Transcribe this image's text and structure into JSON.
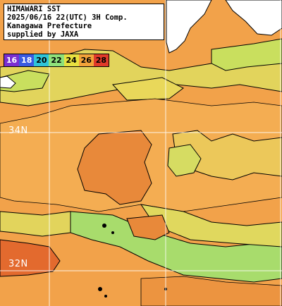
{
  "header": {
    "lines": [
      "HIMAWARI SST",
      "2025/06/16 22(UTC) 3H Comp.",
      "Kanagawa Prefecture",
      "supplied by JAXA"
    ]
  },
  "legend": {
    "items": [
      {
        "label": "16",
        "bg": "#7a2fd0",
        "fg": "#ffffff"
      },
      {
        "label": "18",
        "bg": "#3a5be0",
        "fg": "#ffffff"
      },
      {
        "label": "20",
        "bg": "#2fc4d8",
        "fg": "#000000"
      },
      {
        "label": "22",
        "bg": "#8fe07a",
        "fg": "#000000"
      },
      {
        "label": "24",
        "bg": "#e8e040",
        "fg": "#000000"
      },
      {
        "label": "26",
        "bg": "#f2a23a",
        "fg": "#000000"
      },
      {
        "label": "28",
        "bg": "#e03a2a",
        "fg": "#000000"
      }
    ]
  },
  "grid_labels": {
    "lat_34": "34N",
    "lat_32": "32N"
  },
  "colors": {
    "land": "#ffffff",
    "warm_orange": "#f2a24a",
    "light_orange": "#f6b45a",
    "yellow": "#e9d85a",
    "yellow_green": "#c9df5e",
    "green": "#8fd66e",
    "dark_orange": "#e8893a",
    "red_orange": "#e36a2e",
    "grid": "#ffffff",
    "contour": "#000000"
  }
}
